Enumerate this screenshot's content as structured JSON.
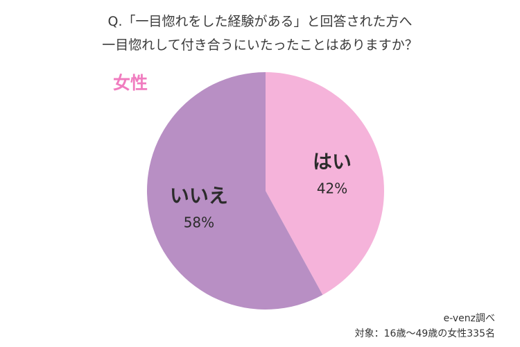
{
  "title_line1": "Q.「一目惚れをした経験がある」と回答された方へ",
  "title_line2": "一目惚れして付き合うにいたったことはありますか？",
  "group_label": "女性",
  "source_line1": "e-venz調べ",
  "source_line2": "対象：16歳〜49歳の女性335名",
  "chart_data": {
    "type": "pie",
    "title": "Q.「一目惚れをした経験がある」と回答された方へ 一目惚れして付き合うにいたったことはありますか？",
    "categories": [
      "はい",
      "いいえ"
    ],
    "values": [
      42,
      58
    ],
    "value_labels": [
      "42%",
      "58%"
    ],
    "colors": [
      "#f5b3da",
      "#b88fc4"
    ],
    "start": "12 o'clock, clockwise",
    "legend": "none"
  }
}
